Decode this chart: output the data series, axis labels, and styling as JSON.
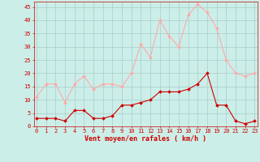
{
  "x": [
    0,
    1,
    2,
    3,
    4,
    5,
    6,
    7,
    8,
    9,
    10,
    11,
    12,
    13,
    14,
    15,
    16,
    17,
    18,
    19,
    20,
    21,
    22,
    23
  ],
  "avg_wind": [
    3,
    3,
    3,
    2,
    6,
    6,
    3,
    3,
    4,
    8,
    8,
    9,
    10,
    13,
    13,
    13,
    14,
    16,
    20,
    8,
    8,
    2,
    1,
    2
  ],
  "gust_wind": [
    11,
    16,
    16,
    9,
    16,
    19,
    14,
    16,
    16,
    15,
    20,
    31,
    26,
    40,
    34,
    30,
    42,
    46,
    43,
    37,
    25,
    20,
    19,
    20
  ],
  "xlabel": "Vent moyen/en rafales ( km/h )",
  "yticks": [
    0,
    5,
    10,
    15,
    20,
    25,
    30,
    35,
    40,
    45
  ],
  "xticks": [
    0,
    1,
    2,
    3,
    4,
    5,
    6,
    7,
    8,
    9,
    10,
    11,
    12,
    13,
    14,
    15,
    16,
    17,
    18,
    19,
    20,
    21,
    22,
    23
  ],
  "avg_color": "#cc0000",
  "gust_color": "#ffaaaa",
  "bg_color": "#cceee8",
  "grid_color": "#aacccc",
  "tick_fontsize": 5.0,
  "xlabel_fontsize": 6.0,
  "ylim_max": 47,
  "xlim_min": -0.3,
  "xlim_max": 23.3
}
